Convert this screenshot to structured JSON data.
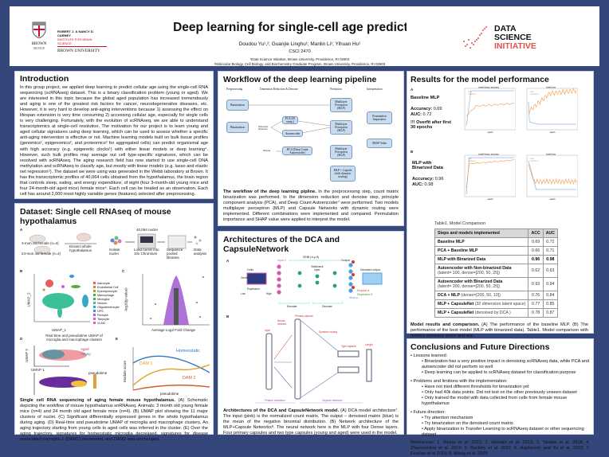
{
  "header": {
    "title": "Deep learning for single-cell age prediction",
    "authors": "Doudou Yu¹,²; Guanjie Linghu¹; Manlin Li¹; Yihuan Hu¹",
    "course": "CSCI 2470",
    "affiliation1": "¹Data Science Initiative, Brown University, Providence, RI 02903",
    "affiliation2": "²Molecular Biology, Cell Biology, and Biochemistry Graduate Program, Brown University, Providence, RI 02903",
    "logo_left_lines": [
      "ROBERT J. & NANCY D. CARNEY",
      "INSTITUTE FOR BRAIN SCIENCE",
      "BROWN UNIVERSITY"
    ],
    "logo_brown": [
      "BROWN",
      "MCBGP"
    ],
    "logo_right": [
      "DATA",
      "SCIENCE",
      "INITIATIVE"
    ]
  },
  "intro": {
    "title": "Introduction",
    "text": "In this group project, we applied deep learning to predict cellular age using the single-cell RNA sequencing (scRNAseq) dataset. This is a binary classification problem (young or aged). We are interested in this topic because the global aged population has increased tremendously and aging is one of the greatest risk factors for cancer, neurodegenerative diseases, etc. However, it is very hard to develop anti-aging interventions because 1) assessing the effect on lifespan extension is very time consuming 2) accessing cellular age, especially for single cells is very challenging. Fortunately, with the evolution of scRNAseq, we are able to understand transcriptomics at single-cell resolution. The motivation for our project is to learn young and aged cellular signatures using deep learning, which can be used to assess whether a specific anti-aging intervention is effective or not. Machine learning models built on bulk tissue profiles (genomics¹, epigenomics², and proteomics³ for aggregated cells) can predict organismal age with high accuracy (e.g. epigenetic clocks¹) with either linear models or deep learning⁴. However, such bulk profiles may average out cell type-specific signatures, which can be resolved with scRNAseq. The aging research field has now started to use single-cell DNA methylation and scRNAseq to classify age, but mostly with linear models (e.g. lasso and elastic net regression⁵). The dataset we were using was generated in the Webb laboratory at Brown. It has the transcriptomic profiles of 40,064 cells obtained from the hypothalamus, the brain region that controls sleep, eating, and energy expenditure, of eight (four 3-month-old young mice and four 24-month-old aged mice) female mice⁶. Each cell can be treated as an observation. Each cell has around 2,000 most highly variable genes (features) selected after preprocessing."
  },
  "dataset": {
    "title": "Dataset: Single cell RNAseq of mouse hypothalamus",
    "fig_a": {
      "label": "A",
      "young": "3-mon old female (n=4)",
      "aged": "24-mon old female (n=4)",
      "dissect": "Dissect whole hypothalamus",
      "isolate": "Isolate nuclei",
      "nuclei": "40,064 nuclei",
      "load": "Load nuclei into 10x Chromium",
      "seq": "Sequence pooled libraries",
      "analysis": "Data analysis"
    },
    "fig_b": {
      "label": "B",
      "xlabel": "UMAP_1",
      "ylabel": "UMAP_2",
      "legend": [
        "Astrocyte",
        "Endothelial Cell",
        "Ependymocyte",
        "Macrophage",
        "Microglia",
        "Neuron",
        "Oligodendrocyte",
        "OPC",
        "Pericyte",
        "Tanycyte",
        "VLMC"
      ],
      "colors": [
        "#e8605a",
        "#d38b2a",
        "#a8a030",
        "#5aa838",
        "#3bb06a",
        "#3dbf9a",
        "#35a8c8",
        "#3d8fe0",
        "#9a6ae0",
        "#d060d8",
        "#e8609a"
      ]
    },
    "fig_c": {
      "label": "C",
      "xlabel": "Average Log2 Fold Change",
      "ylabel": "-log10(p-value)"
    },
    "fig_d": {
      "label": "D",
      "title": "Real time and pseudotime UMAP of microglia and macrophage clusters",
      "legend": [
        "Aged",
        "Young"
      ],
      "xlabel": "UMAP 1",
      "ylabel": "UMAP 2",
      "colorbar": "pseudotime"
    },
    "fig_e": {
      "label": "E",
      "ylabel": "Module score",
      "xlabel": "pseudotime",
      "series": [
        "Homeostatic",
        "DAM 1",
        "DAM 2"
      ]
    },
    "caption_bold": "Single cell RNA sequencing of aging female mouse hypothalamus.",
    "caption": " (A) Schematic depicting the workflow of mouse hypothalamus snRNAseq. Animals: 3 month old young female mice (n=4) and 24 month old aged female mice (n=4). (B) UMAP plot showing the 11 major clusters of nuclei. (C) Significant differentially expressed genes in the whole hypothalamus during aging. (D) Real-time and pseudotime UMAP of microglia and macrophage clusters. An aging trajectory starting from young cells to aged cells was inferred in the cluster. (E) Over the aging trajectory, signatures for homeostatic microglia decreased, signatures for disease associated microglia 1 (DAM1) decreased, and DAM2 was unchanged."
  },
  "workflow": {
    "title": "Workflow of the deep learning pipeline",
    "columns": [
      "Preprocessing",
      "Dimension Reduction & Denoise",
      "Prediction",
      "Interpretation"
    ],
    "boxes": {
      "bin1": "Binarization",
      "bin2": "Binarization",
      "pca": "PCA (95 comp.)",
      "ae": "Autoencoder",
      "dca": "DCA (Deep Count Autoencoder)",
      "mlp1": "Multilayer Perceptron (MLP)",
      "mlp2": "Multilayer Perceptron (MLP)",
      "mlp3": "Multilayer Perceptron (MLP)",
      "caps": "MLP + Capsule (with dynamic routing)",
      "perm": "Permutation Importance",
      "shap": "SHAP Value",
      "dimred": "Dimension Reduction",
      "denoise": "Denoise"
    },
    "caption_bold": "The workflow of the deep learning pipline.",
    "caption": " In the preprocessing step, count matrix binarization was performed. In the dimension reduction and denoise step, principle component analysis (PCA), and Deep Count Autoencoder⁷ were performed. Two models multiplayer perceptron (MLP) and Capsule Networks with dynamic routing were implemented. Different combinations were implemented and compared. Permutation importance and SHAP value were applied to interpret the model."
  },
  "arch": {
    "title": "Architectures of the DCA and CapsuleNetwork",
    "fig_a": {
      "label": "A",
      "zinb": "ZINB (π,μ,θ)",
      "input": "Input x",
      "output": "Output",
      "cells": "Cells",
      "genes": "Genes",
      "expression": "Expression",
      "low": "Low",
      "high": "High",
      "bottleneck": "Bottleneck layer",
      "denoised": "Denoised output",
      "dropout": "Dropout π",
      "dispersion": "Dispersion θ",
      "mean": "Mean μ",
      "encoder": "Encoder",
      "decoder": "Decoder"
    },
    "fig_b": {
      "label": "B",
      "input": "Input",
      "nn": "Neural network",
      "primary": "Primary capsule",
      "routing": "Dynamic routing",
      "type": "Type capsule",
      "length": "Length",
      "feature": "Feature extraction",
      "capsnet": "Capsule networks"
    },
    "caption_bold": "Architectures of the DCA and CapsuleNetwork model.",
    "caption": " (A) DCA model architecture⁷. The input (pink) is the normalized count matrix. The output – denoised matrix (blue) is the mean of the negative binomial distribution. (B) Network architecture of the MLP+Capsule Networks⁸. The neural network here is the MLP with four Dense layers. Four primary capsules and two type capsules (young and aged) were used in the model."
  },
  "results": {
    "title": "Results for the model performance",
    "a": {
      "label": "A",
      "model": "Baseline MLP",
      "acc_label": "Accuracy:",
      "acc": "0.69",
      "auc_label": "AUC:",
      "auc": "0.72",
      "note": "!!! Overfit after first 30 epochs",
      "plot1_title": "model binary_accuracy",
      "plot2_title": "model loss",
      "legend": [
        "train",
        "validation"
      ],
      "xlabel": "epoch"
    },
    "b": {
      "label": "B",
      "model": "MLP with Binarized Data",
      "acc_label": "Accuracy:",
      "acc": "0.96",
      "auc_label": "AUC:",
      "auc": "0.98",
      "plot1_title": "model binary_accuracy",
      "plot2_title": "model loss",
      "legend": [
        "train",
        "validation"
      ],
      "xlabel": "epoch"
    },
    "colors": {
      "train": "#8fb3e0",
      "validation": "#f5a45f"
    },
    "table_title": "Table1. Model Comparison",
    "table_headers": [
      "Steps and models implemented",
      "ACC",
      "AUC"
    ],
    "table_rows": [
      {
        "name": "Baseline MLP",
        "detail": "",
        "acc": "0.69",
        "auc": "0.72"
      },
      {
        "name": "PCA + Baseline MLP",
        "detail": "",
        "acc": "0.66",
        "auc": "0.71"
      },
      {
        "name": "MLP with Binarized Data",
        "detail": "",
        "acc": "0.96",
        "auc": "0.98"
      },
      {
        "name": "Autoencoder with Non-binarized Data",
        "detail": "(latent= 100,  dense=[200, 50, 25])",
        "acc": "0.62",
        "auc": "0.63"
      },
      {
        "name": "Autoencoder with Binarized Data",
        "detail": "(latent= 200, dense=[200, 50, 25])",
        "acc": "0.93",
        "auc": "0.94"
      },
      {
        "name": "DCA + MLP",
        "detail": " (dense=[200, 50, 10])",
        "acc": "0.76",
        "auc": "0.84"
      },
      {
        "name": "MLP + CapsuleNet",
        "detail": " (32 dimension latent space)",
        "acc": "0.77",
        "auc": "0.85"
      },
      {
        "name": "MLP + CapsuleNet",
        "detail": " (denoised by DCA )",
        "acc": "0.78",
        "auc": "0.87"
      }
    ],
    "caption_bold": "Model results and comparison.",
    "caption": " (A) The performance of the baseline MLP. (B) The performance of the best model (MLP with binarized data). Table1. Model comparison with metrics accuracy score and auc."
  },
  "conclusions": {
    "title": "Conclusions and Future Directions",
    "groups": [
      {
        "head": "Lessons learned:",
        "items": [
          "Binarization has a very positive impact in denoising scRNAseq data, while PCA and autoencoder did not perform so well",
          "Deep learning can be applied to scRNAseq dataset for classification purpose"
        ]
      },
      {
        "head": "Problems and limitions with the implementation:",
        "items": [
          "Have not tried different thresholds for binarization yet",
          "Only had 40k data points. Did not test on the other previously unseen dataset",
          "Only trained the model with data collected from cells from female mouse hypothalamus"
        ]
      },
      {
        "head": "Future direction:",
        "items": [
          "Try attention mechanism",
          "Try binarization on the denoised count matrix",
          "Apply binarization in Transfer Learning to scRNAseq dataset or other sequencing dataset"
        ]
      }
    ],
    "references": "References: 1. Meyer et al. 2021; 2. Horvath et al. 2013; 3. Tanaka et al. 2018; 4. Zhavoronkov et al. 2019; 5. Buckley et al. 2022; 6. Hajdarovic and Yu et al. 2022; 7. Eraslan et al 2019; 8. Wang et al. 2929"
  }
}
